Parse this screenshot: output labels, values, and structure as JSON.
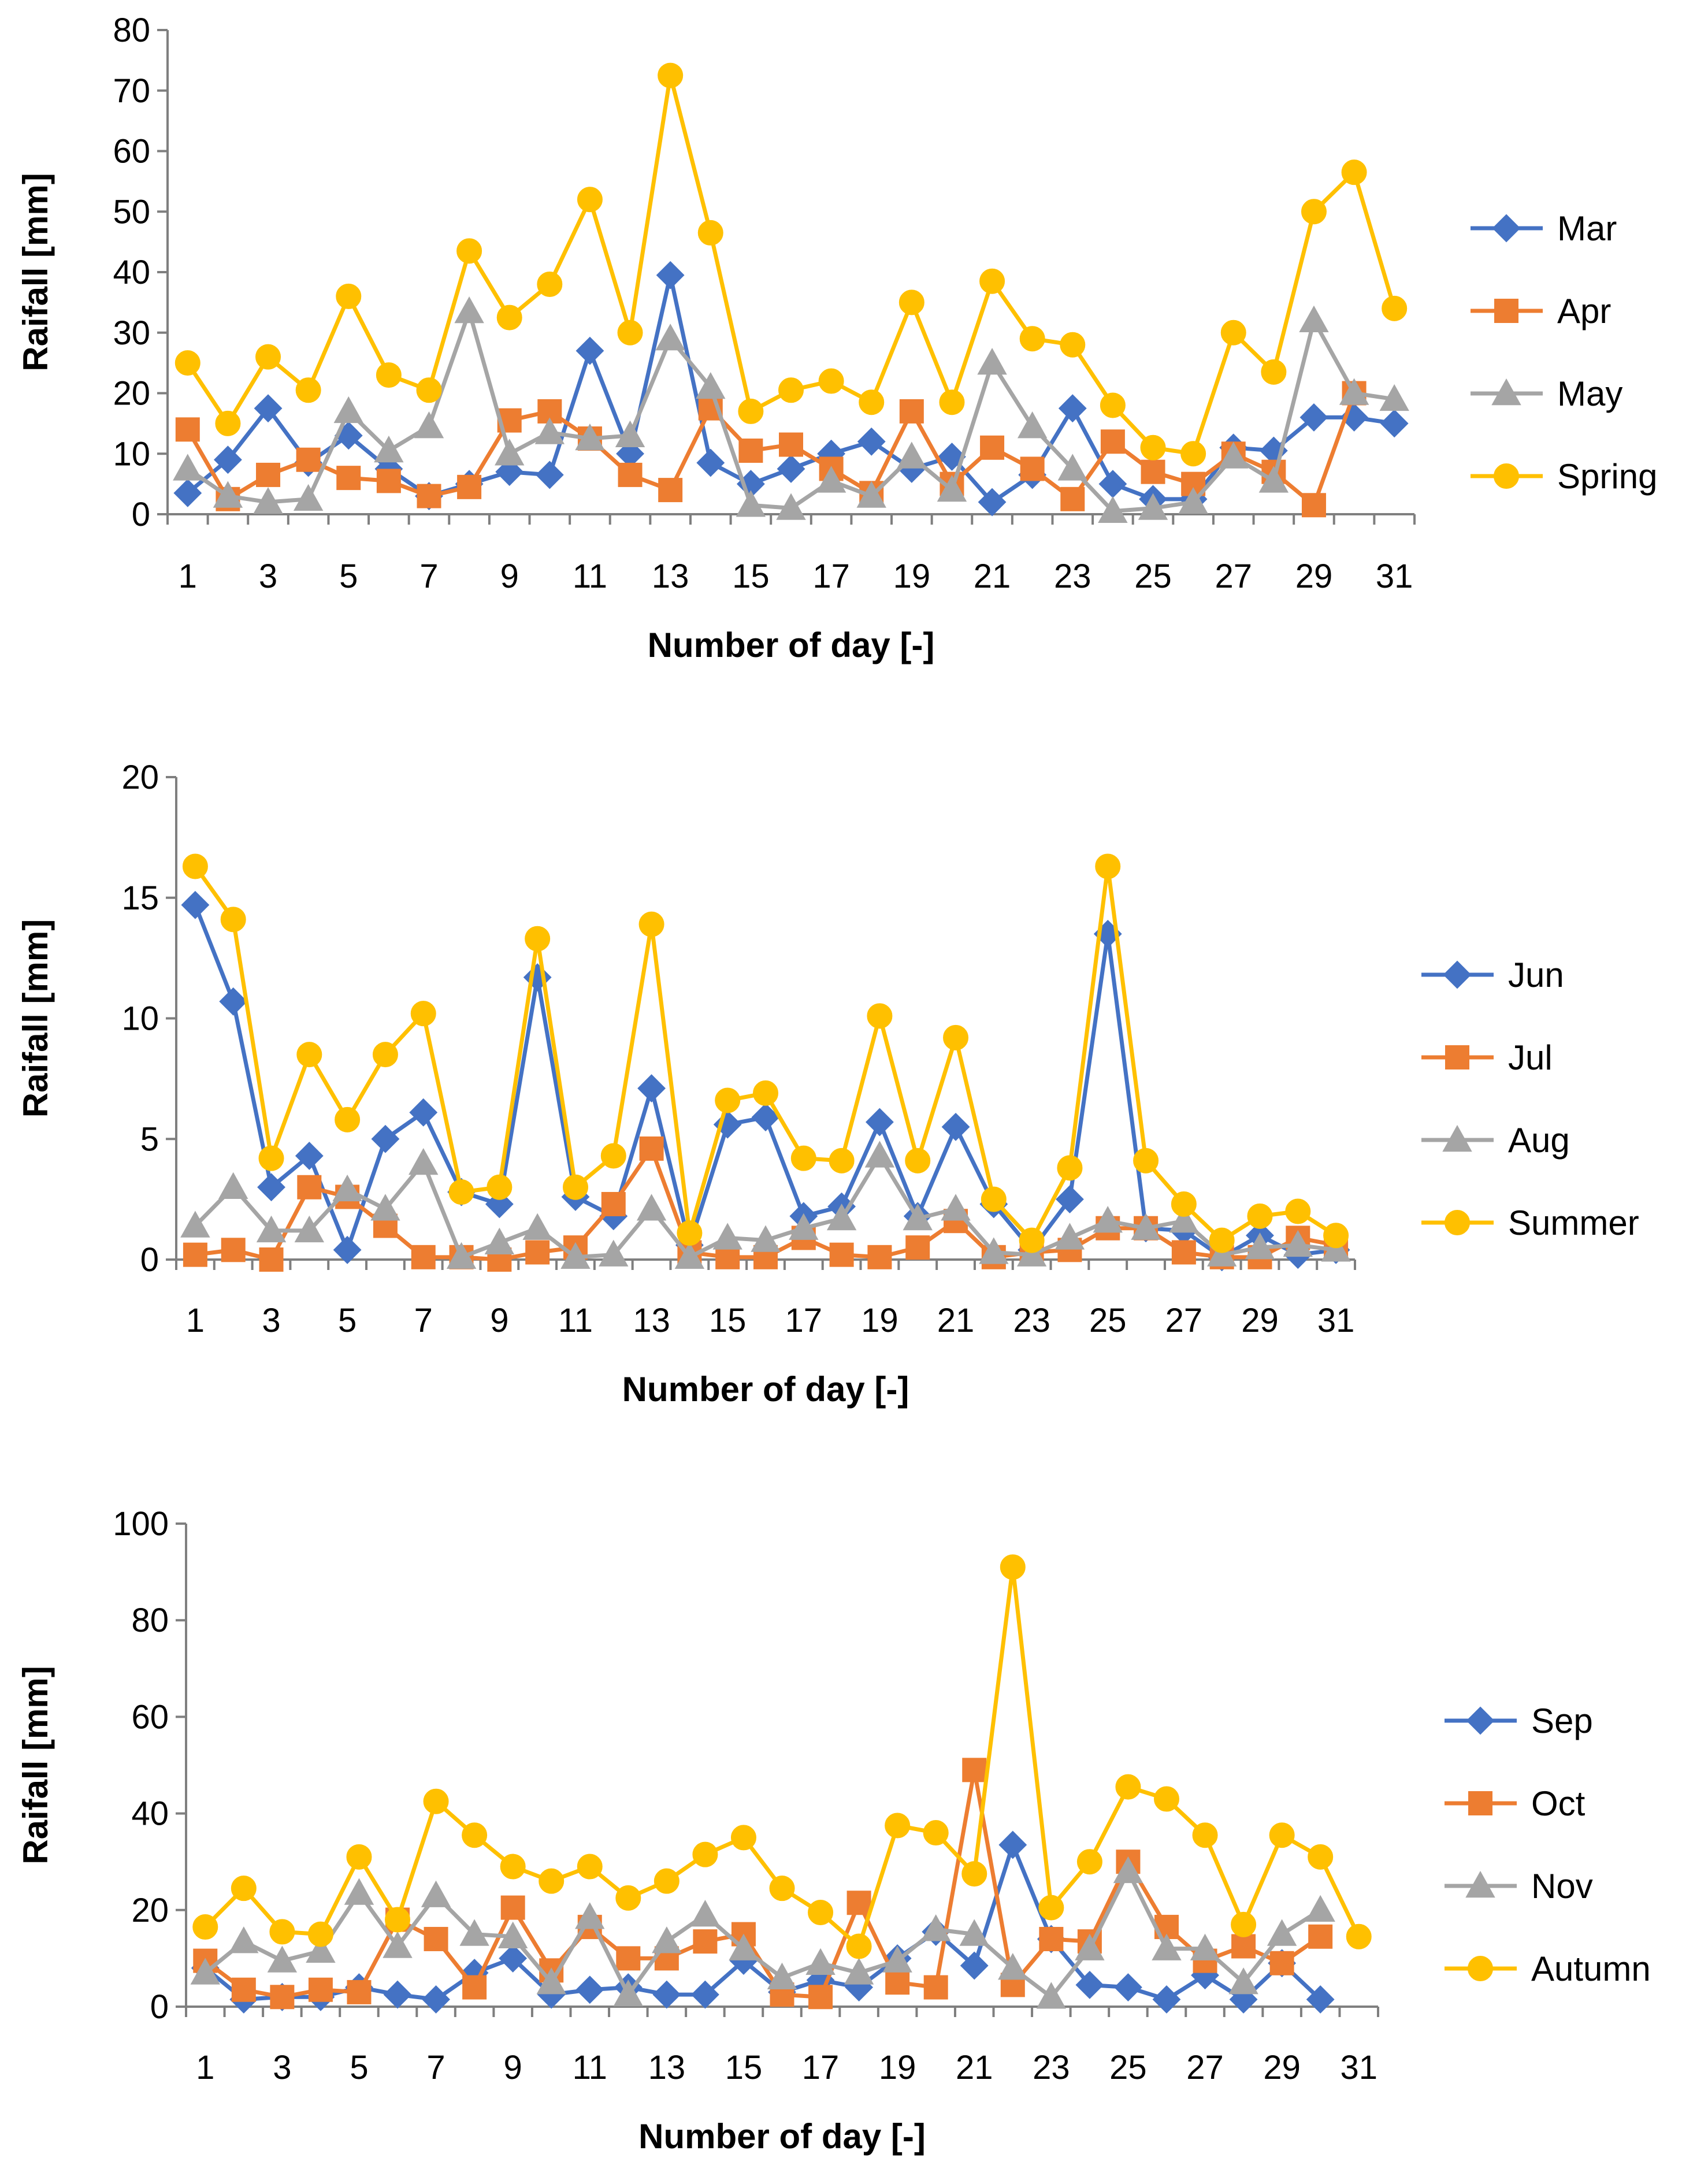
{
  "chart_data": [
    {
      "type": "line",
      "xlabel": "Number of day [-]",
      "ylabel": "Raifall [mm]",
      "ylim": [
        0,
        80
      ],
      "yticks": [
        0,
        10,
        20,
        30,
        40,
        50,
        60,
        70,
        80
      ],
      "xticks": [
        1,
        3,
        5,
        7,
        9,
        11,
        13,
        15,
        17,
        19,
        21,
        23,
        25,
        27,
        29,
        31
      ],
      "legend_position": "right",
      "series": [
        {
          "name": "Mar",
          "color": "#4472C4",
          "marker": "diamond",
          "values": [
            3.5,
            9,
            17.5,
            8.5,
            13,
            7.5,
            3,
            5,
            7,
            6.5,
            27,
            10,
            39.5,
            8.5,
            5,
            7.5,
            10,
            12,
            7.5,
            9.5,
            2,
            6.5,
            17.5,
            5,
            2.5,
            2.5,
            11,
            10.5,
            16,
            16,
            15
          ]
        },
        {
          "name": "Apr",
          "color": "#ED7D31",
          "marker": "square",
          "values": [
            14,
            2.5,
            6.5,
            9,
            6,
            5.5,
            3,
            4.5,
            15.5,
            17,
            12.5,
            6.5,
            4,
            17.5,
            10.5,
            11.5,
            7.5,
            3.5,
            17,
            5,
            11,
            7.5,
            2.5,
            12,
            7,
            5,
            10,
            7,
            1.5,
            20
          ]
        },
        {
          "name": "May",
          "color": "#A5A5A5",
          "marker": "triangle",
          "values": [
            7.5,
            3,
            2,
            2.5,
            17,
            10.5,
            14.5,
            33.5,
            10,
            13.5,
            12.5,
            13,
            29,
            21,
            1.5,
            1,
            5.5,
            3,
            9.5,
            4,
            25,
            14.5,
            7.5,
            0.5,
            1,
            2,
            9.5,
            5.5,
            32,
            20,
            19
          ]
        },
        {
          "name": "Spring",
          "color": "#FFC000",
          "marker": "circle",
          "values": [
            25,
            15,
            26,
            20.5,
            36,
            23,
            20.5,
            43.5,
            32.5,
            38,
            52,
            30,
            72.5,
            46.5,
            17,
            20.5,
            22,
            18.5,
            35,
            18.5,
            38.5,
            29,
            28,
            18,
            11,
            10,
            30,
            23.5,
            50,
            56.5,
            34
          ]
        }
      ]
    },
    {
      "type": "line",
      "xlabel": "Number of day [-]",
      "ylabel": "Raifall [mm]",
      "ylim": [
        0,
        20
      ],
      "yticks": [
        0,
        5,
        10,
        15,
        20
      ],
      "xticks": [
        1,
        3,
        5,
        7,
        9,
        11,
        13,
        15,
        17,
        19,
        21,
        23,
        25,
        27,
        29,
        31
      ],
      "legend_position": "right",
      "series": [
        {
          "name": "Jun",
          "color": "#4472C4",
          "marker": "diamond",
          "values": [
            14.7,
            10.7,
            3,
            4.3,
            0.4,
            5,
            6.1,
            2.8,
            2.3,
            11.7,
            2.6,
            1.8,
            7.1,
            0.6,
            5.6,
            5.9,
            1.8,
            2.2,
            5.7,
            1.8,
            5.5,
            2.3,
            0.4,
            2.5,
            13.5,
            1.3,
            1.2,
            0.1,
            1,
            0.2,
            0.4
          ]
        },
        {
          "name": "Jul",
          "color": "#ED7D31",
          "marker": "square",
          "values": [
            0.2,
            0.4,
            0,
            3,
            2.6,
            1.4,
            0.1,
            0.1,
            0,
            0.3,
            0.5,
            2.3,
            4.6,
            0.3,
            0.1,
            0.1,
            0.9,
            0.2,
            0.1,
            0.5,
            1.6,
            0.1,
            0.3,
            0.4,
            1.3,
            1.3,
            0.3,
            0.1,
            0.1,
            0.9,
            0.6
          ]
        },
        {
          "name": "Aug",
          "color": "#A5A5A5",
          "marker": "triangle",
          "values": [
            1.4,
            3,
            1.2,
            1.2,
            2.9,
            2.1,
            4,
            0.1,
            0.7,
            1.3,
            0.1,
            0.2,
            2.1,
            0.1,
            0.9,
            0.8,
            1.3,
            1.7,
            4.3,
            1.7,
            2.1,
            0.3,
            0.2,
            0.9,
            1.6,
            1.3,
            1.6,
            0.2,
            0.5,
            0.6,
            0.4
          ]
        },
        {
          "name": "Summer",
          "color": "#FFC000",
          "marker": "circle",
          "values": [
            16.3,
            14.1,
            4.2,
            8.5,
            5.8,
            8.5,
            10.2,
            2.8,
            3,
            13.3,
            3,
            4.3,
            13.9,
            1.1,
            6.6,
            6.9,
            4.2,
            4.1,
            10.1,
            4.1,
            9.2,
            2.5,
            0.8,
            3.8,
            16.3,
            4.1,
            2.3,
            0.8,
            1.8,
            2,
            1
          ]
        }
      ]
    },
    {
      "type": "line",
      "xlabel": "Number of day [-]",
      "ylabel": "Raifall [mm]",
      "ylim": [
        0,
        100
      ],
      "yticks": [
        0,
        20,
        40,
        60,
        80,
        100
      ],
      "xticks": [
        1,
        3,
        5,
        7,
        9,
        11,
        13,
        15,
        17,
        19,
        21,
        23,
        25,
        27,
        29,
        31
      ],
      "legend_position": "right",
      "series": [
        {
          "name": "Sep",
          "color": "#4472C4",
          "marker": "diamond",
          "values": [
            8,
            1.5,
            2,
            2,
            4,
            2.5,
            1.5,
            7,
            10,
            2.5,
            3.5,
            4,
            2.5,
            2.5,
            9.5,
            3,
            5.5,
            4,
            10,
            15.5,
            8.5,
            33.5,
            14,
            4.5,
            4,
            1.5,
            6.5,
            1.5,
            9,
            1.5
          ]
        },
        {
          "name": "Oct",
          "color": "#ED7D31",
          "marker": "square",
          "values": [
            9.5,
            3.5,
            2,
            3.5,
            3,
            18,
            14,
            4,
            20.5,
            7.5,
            16.5,
            10,
            10,
            13.5,
            15,
            2.5,
            2,
            21.5,
            5,
            4,
            49,
            4.5,
            14,
            13.5,
            30,
            16.5,
            9.5,
            12.5,
            9,
            14.5
          ]
        },
        {
          "name": "Nov",
          "color": "#A5A5A5",
          "marker": "triangle",
          "values": [
            7,
            13.5,
            9.5,
            11.5,
            23.5,
            12.5,
            23,
            15,
            14.5,
            5,
            18.5,
            2.5,
            13.5,
            19,
            12,
            6,
            9,
            7,
            9.5,
            16,
            15,
            8,
            2,
            12,
            28,
            12,
            12,
            5,
            15,
            20
          ]
        },
        {
          "name": "Autumn",
          "color": "#FFC000",
          "marker": "circle",
          "values": [
            16.5,
            24.5,
            15.5,
            15,
            31,
            18,
            42.5,
            35.5,
            29,
            26,
            29,
            22.5,
            26,
            31.5,
            35,
            24.5,
            19.5,
            12.5,
            37.5,
            36,
            27.5,
            91,
            20.5,
            30,
            45.5,
            43,
            35.5,
            17,
            35.5,
            31,
            14.5
          ]
        }
      ]
    }
  ]
}
